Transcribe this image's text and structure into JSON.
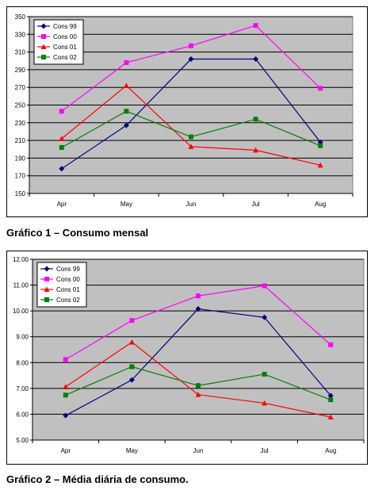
{
  "captions": {
    "chart1": "Gráfico 1 – Consumo mensal",
    "chart2": "Gráfico 2 – Média diária de consumo."
  },
  "chart_data": [
    {
      "type": "line",
      "categories": [
        "Apr",
        "May",
        "Jun",
        "Jul",
        "Aug"
      ],
      "ylim": [
        150,
        350
      ],
      "ystep": 20,
      "ytick_decimals": 0,
      "grid": true,
      "legend_position": "top-left",
      "plot_background": "#c0c0c0",
      "series": [
        {
          "name": "Cons 99",
          "color": "#000080",
          "marker": "diamond",
          "values": [
            178,
            227,
            302,
            302,
            208
          ]
        },
        {
          "name": "Cons 00",
          "color": "#ff00ff",
          "marker": "square",
          "values": [
            243,
            298,
            317,
            340,
            269
          ]
        },
        {
          "name": "Cons 01",
          "color": "#ff0000",
          "marker": "triangle",
          "values": [
            212,
            272,
            203,
            199,
            182
          ]
        },
        {
          "name": "Cons 02",
          "color": "#008000",
          "marker": "square",
          "values": [
            202,
            243,
            214,
            234,
            204
          ]
        }
      ]
    },
    {
      "type": "line",
      "categories": [
        "Apr",
        "May",
        "Jun",
        "Jul",
        "Aug"
      ],
      "ylim": [
        5,
        12
      ],
      "ystep": 1,
      "ytick_decimals": 2,
      "grid": true,
      "legend_position": "top-left",
      "plot_background": "#c0c0c0",
      "series": [
        {
          "name": "Cons 99",
          "color": "#000080",
          "marker": "diamond",
          "values": [
            5.95,
            7.33,
            10.08,
            9.75,
            6.72
          ]
        },
        {
          "name": "Cons 00",
          "color": "#ff00ff",
          "marker": "square",
          "values": [
            8.12,
            9.63,
            10.58,
            10.97,
            8.69
          ]
        },
        {
          "name": "Cons 01",
          "color": "#ff0000",
          "marker": "triangle",
          "values": [
            7.06,
            8.79,
            6.76,
            6.43,
            5.89
          ]
        },
        {
          "name": "Cons 02",
          "color": "#008000",
          "marker": "square",
          "values": [
            6.74,
            7.84,
            7.11,
            7.55,
            6.56
          ]
        }
      ]
    }
  ]
}
